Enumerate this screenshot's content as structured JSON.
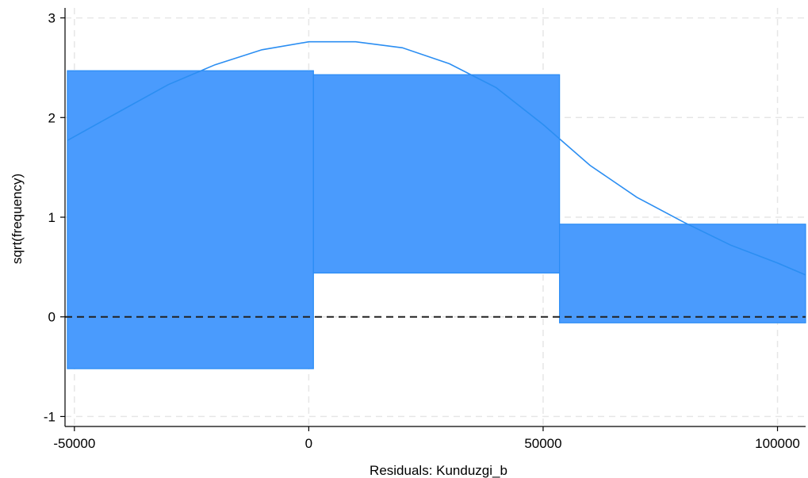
{
  "chart_data": {
    "type": "hanging-rootogram",
    "title": "",
    "xlabel": "Residuals: Kunduzgi_b",
    "ylabel": "sqrt(frequency)",
    "xlim": [
      -52000,
      106000
    ],
    "ylim": [
      -1.1,
      3.1
    ],
    "x_ticks": [
      -50000,
      0,
      50000,
      100000
    ],
    "x_tick_labels": [
      "-50000",
      "0",
      "50000",
      "100000"
    ],
    "y_ticks": [
      -1,
      0,
      1,
      2,
      3
    ],
    "y_tick_labels": [
      "-1",
      "0",
      "1",
      "2",
      "3"
    ],
    "grid": true,
    "legend": "none",
    "bars": [
      {
        "x_start": -51500,
        "x_end": 1000,
        "top": 2.47,
        "bottom": -0.52
      },
      {
        "x_start": 1000,
        "x_end": 53500,
        "top": 2.43,
        "bottom": 0.44
      },
      {
        "x_start": 53500,
        "x_end": 106000,
        "top": 0.93,
        "bottom": -0.06
      }
    ],
    "normal_curve": {
      "points": [
        [
          -51500,
          1.77
        ],
        [
          -40000,
          2.07
        ],
        [
          -30000,
          2.33
        ],
        [
          -20000,
          2.53
        ],
        [
          -10000,
          2.68
        ],
        [
          0,
          2.76
        ],
        [
          10000,
          2.76
        ],
        [
          20000,
          2.7
        ],
        [
          30000,
          2.54
        ],
        [
          40000,
          2.3
        ],
        [
          50000,
          1.93
        ],
        [
          60000,
          1.52
        ],
        [
          70000,
          1.2
        ],
        [
          80000,
          0.95
        ],
        [
          90000,
          0.72
        ],
        [
          100000,
          0.54
        ],
        [
          106000,
          0.42
        ]
      ]
    },
    "reference_line_y": 0,
    "colors": {
      "bar_fill": "#4a9bfd",
      "bar_stroke": "#2a8cf5",
      "curve": "#2b8ef2",
      "grid": "#e6e6e6",
      "reference": "#222222"
    }
  }
}
